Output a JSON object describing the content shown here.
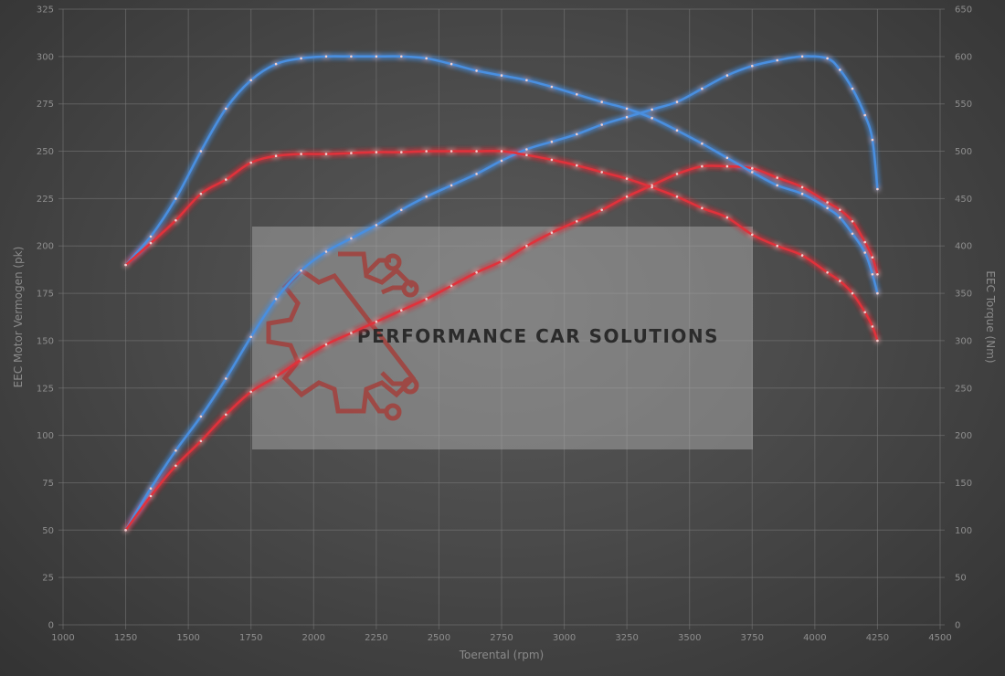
{
  "chart_data": {
    "type": "line",
    "xlabel": "Toerental (rpm)",
    "ylabel_left": "EEC Motor Vermogen (pk)",
    "ylabel_right": "EEC Torque (Nm)",
    "xlim": [
      1000,
      4500
    ],
    "ylim_left": [
      0,
      325
    ],
    "ylim_right": [
      0,
      650
    ],
    "x_ticks": [
      "1000",
      "1250",
      "1500",
      "1750",
      "2000",
      "2250",
      "2500",
      "2750",
      "3000",
      "3250",
      "3500",
      "3750",
      "4000",
      "4250",
      "4500"
    ],
    "y_left_ticks": [
      "0",
      "25",
      "50",
      "75",
      "100",
      "125",
      "150",
      "175",
      "200",
      "225",
      "250",
      "275",
      "300",
      "325"
    ],
    "y_right_ticks": [
      "0",
      "50",
      "100",
      "150",
      "200",
      "250",
      "300",
      "350",
      "400",
      "450",
      "500",
      "550",
      "600",
      "650"
    ],
    "grid": true,
    "legend": "none",
    "series": [
      {
        "color": "#4a8fe0",
        "axis": "left",
        "x": [
          1250,
          1350,
          1450,
          1550,
          1650,
          1750,
          1850,
          1950,
          2050,
          2150,
          2250,
          2350,
          2450,
          2550,
          2650,
          2750,
          2850,
          2950,
          3050,
          3150,
          3250,
          3350,
          3450,
          3550,
          3650,
          3750,
          3850,
          3950,
          4050,
          4100,
          4150,
          4200,
          4230,
          4250
        ],
        "values": [
          50,
          72,
          92,
          110,
          130,
          152,
          172,
          187,
          197,
          204,
          211,
          219,
          226,
          232,
          238,
          245,
          251,
          255,
          259,
          264,
          268,
          272,
          276,
          283,
          290,
          295,
          298,
          300,
          299,
          293,
          283,
          269,
          256,
          230
        ]
      },
      {
        "color": "#e0303a",
        "axis": "left",
        "x": [
          1250,
          1350,
          1450,
          1550,
          1650,
          1750,
          1850,
          1950,
          2050,
          2150,
          2250,
          2350,
          2450,
          2550,
          2650,
          2750,
          2850,
          2950,
          3050,
          3150,
          3250,
          3350,
          3450,
          3550,
          3650,
          3750,
          3850,
          3950,
          4050,
          4100,
          4150,
          4200,
          4230,
          4250
        ],
        "values": [
          50,
          68,
          84,
          97,
          111,
          123,
          131,
          140,
          148,
          154,
          160,
          166,
          172,
          179,
          186,
          192,
          200,
          207,
          213,
          219,
          226,
          232,
          238,
          242,
          242,
          241,
          236,
          231,
          223,
          219,
          213,
          202,
          194,
          185
        ]
      },
      {
        "color": "#4a8fe0",
        "axis": "right",
        "x": [
          1250,
          1350,
          1450,
          1550,
          1650,
          1750,
          1850,
          1950,
          2050,
          2150,
          2250,
          2350,
          2450,
          2550,
          2650,
          2750,
          2850,
          2950,
          3050,
          3150,
          3250,
          3350,
          3450,
          3550,
          3650,
          3750,
          3850,
          3950,
          4050,
          4100,
          4150,
          4200,
          4230,
          4250
        ],
        "values": [
          380,
          410,
          450,
          500,
          545,
          575,
          592,
          598,
          600,
          600,
          600,
          600,
          598,
          592,
          585,
          580,
          575,
          568,
          560,
          552,
          545,
          535,
          522,
          508,
          493,
          478,
          464,
          455,
          440,
          430,
          413,
          393,
          370,
          350
        ]
      },
      {
        "color": "#e0303a",
        "axis": "right",
        "x": [
          1250,
          1350,
          1450,
          1550,
          1650,
          1750,
          1850,
          1950,
          2050,
          2150,
          2250,
          2350,
          2450,
          2550,
          2650,
          2750,
          2850,
          2950,
          3050,
          3150,
          3250,
          3350,
          3450,
          3550,
          3650,
          3750,
          3850,
          3950,
          4050,
          4100,
          4150,
          4200,
          4230,
          4250
        ],
        "values": [
          380,
          403,
          427,
          455,
          470,
          488,
          495,
          497,
          497,
          498,
          499,
          499,
          500,
          500,
          500,
          500,
          496,
          491,
          485,
          478,
          471,
          462,
          452,
          440,
          430,
          412,
          400,
          390,
          372,
          363,
          350,
          330,
          315,
          300
        ]
      }
    ]
  },
  "watermark": {
    "text": "PERFORMANCE CAR SOLUTIONS",
    "icon": "gear-circuit-logo"
  }
}
